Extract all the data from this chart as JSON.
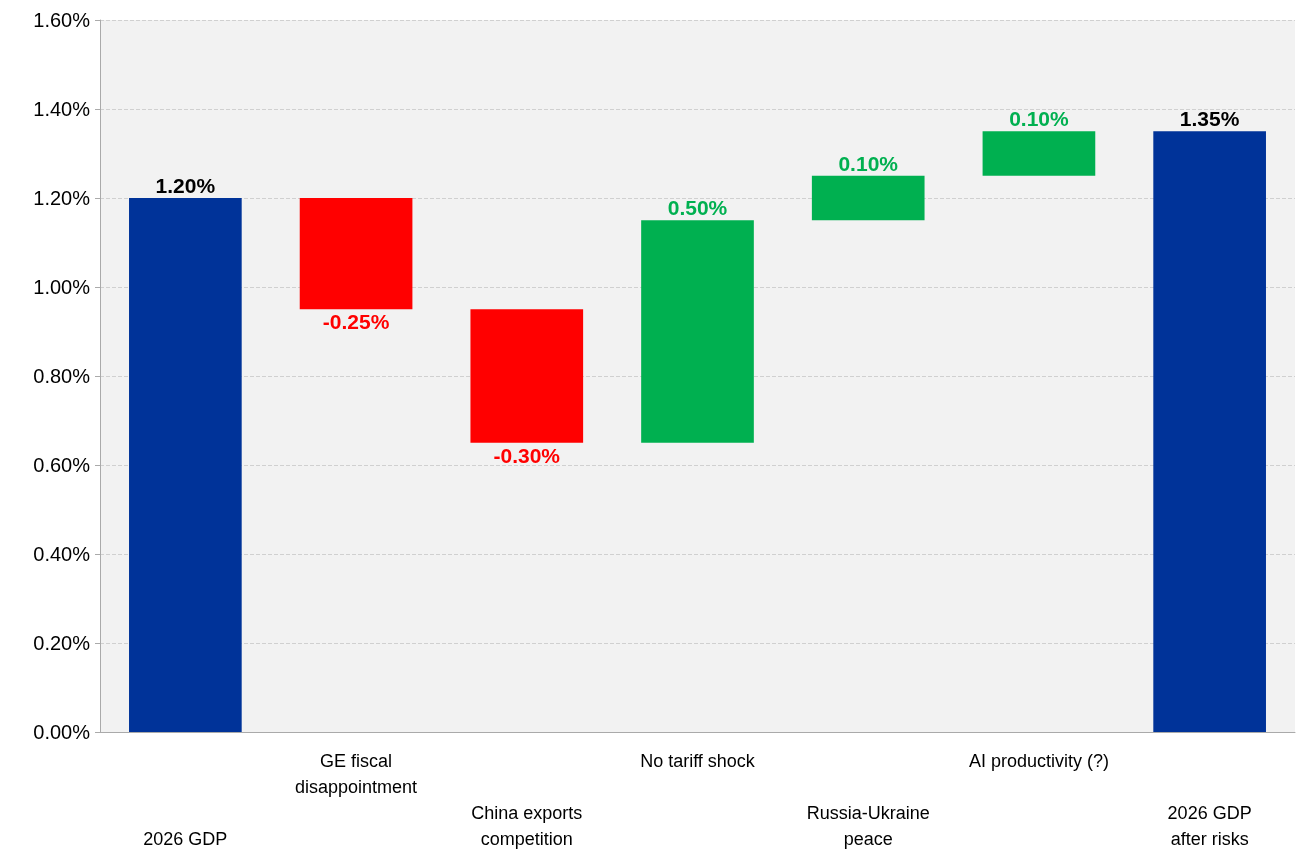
{
  "chart_data": {
    "type": "bar",
    "categories": [
      "2026 GDP",
      "GE fiscal\ndisappointment",
      "China exports\ncompetition",
      "No tariff shock",
      "Russia-Ukraine\npeace",
      "AI productivity (?)",
      "2026 GDP\nafter risks"
    ],
    "base": [
      0,
      1.2,
      0.95,
      0.65,
      1.15,
      1.25,
      0
    ],
    "values": [
      1.2,
      -0.25,
      -0.3,
      0.5,
      0.1,
      0.1,
      1.35
    ],
    "colors": [
      "#003399",
      "#ff0000",
      "#ff0000",
      "#00b050",
      "#00b050",
      "#00b050",
      "#003399"
    ],
    "value_labels": [
      "1.20%",
      "-0.25%",
      "-0.30%",
      "0.50%",
      "0.10%",
      "0.10%",
      "1.35%"
    ],
    "ylim": [
      0,
      1.6
    ],
    "yticks": [
      {
        "value": 0,
        "label": "0.00%"
      },
      {
        "value": 0.2,
        "label": "0.20%"
      },
      {
        "value": 0.4,
        "label": "0.40%"
      },
      {
        "value": 0.6,
        "label": "0.60%"
      },
      {
        "value": 0.8,
        "label": "0.80%"
      },
      {
        "value": 1.0,
        "label": "1.00%"
      },
      {
        "value": 1.2,
        "label": "1.20%"
      },
      {
        "value": 1.4,
        "label": "1.40%"
      },
      {
        "value": 1.6,
        "label": "1.60%"
      }
    ],
    "grid": "y"
  }
}
